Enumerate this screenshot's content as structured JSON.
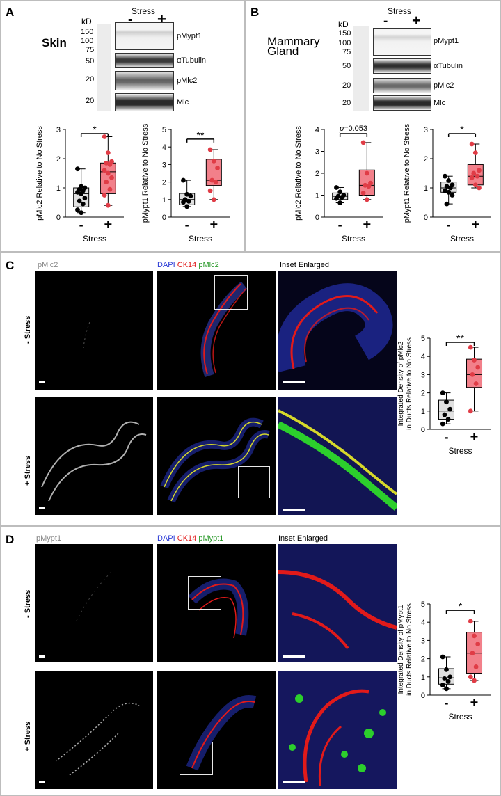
{
  "panels": {
    "A": {
      "letter": "A",
      "tissue": "Skin",
      "kd_label": "kD",
      "stress_label": "Stress",
      "minus": "-",
      "plus": "+",
      "markers": [
        "150",
        "100",
        "75",
        "50",
        "20",
        "20"
      ],
      "blot_labels": [
        "pMypt1",
        "αTubulin",
        "pMlc2",
        "Mlc"
      ]
    },
    "B": {
      "letter": "B",
      "tissue_line1": "Mammary",
      "tissue_line2": "Gland",
      "kd_label": "kD",
      "stress_label": "Stress",
      "minus": "-",
      "plus": "+",
      "markers": [
        "150",
        "100",
        "75",
        "50",
        "20",
        "20"
      ],
      "blot_labels": [
        "pMypt1",
        "αTubulin",
        "pMlc2",
        "Mlc"
      ]
    },
    "C": {
      "letter": "C",
      "col1": "pMlc2",
      "col2_dapi": "DAPI",
      "col2_ck14": "CK14",
      "col2_marker": "pMlc2",
      "col3": "Inset Enlarged",
      "row1": "- Stress",
      "row2": "+ Stress"
    },
    "D": {
      "letter": "D",
      "col1": "pMypt1",
      "col2_dapi": "DAPI",
      "col2_ck14": "CK14",
      "col2_marker": "pMypt1",
      "col3": "Inset Enlarged",
      "row1": "- Stress",
      "row2": "+ Stress"
    }
  },
  "colors": {
    "no_stress_box": "#e0e0e0",
    "stress_box": "#f2808a",
    "stress_point": "#e03c46",
    "dapi": "#2b3bd6",
    "ck14": "#e11a1a",
    "marker_green": "#2ccf2c"
  },
  "chart_data": [
    {
      "id": "A-pMlc2",
      "type": "box",
      "ylabel": "pMlc2 Relative to No Stress",
      "xlabel": "Stress",
      "categories": [
        "-",
        "+"
      ],
      "ylim": [
        0,
        3
      ],
      "yticks": [
        0,
        1,
        2,
        3
      ],
      "significance": "*",
      "series": [
        {
          "points": [
            1.65,
            1.05,
            1.0,
            0.95,
            0.9,
            0.85,
            0.8,
            0.65,
            0.55,
            0.45,
            0.25,
            0.15
          ],
          "box": [
            0.35,
            0.8,
            1.0
          ]
        },
        {
          "points": [
            2.75,
            2.2,
            1.9,
            1.85,
            1.8,
            1.6,
            1.5,
            1.35,
            1.2,
            0.95,
            0.75,
            0.4
          ],
          "box": [
            0.8,
            1.55,
            1.85
          ]
        }
      ]
    },
    {
      "id": "A-pMypt1",
      "type": "box",
      "ylabel": "pMypt1 Relative to No Stress",
      "xlabel": "Stress",
      "categories": [
        "-",
        "+"
      ],
      "ylim": [
        0,
        5
      ],
      "yticks": [
        0,
        1,
        2,
        3,
        4,
        5
      ],
      "significance": "**",
      "series": [
        {
          "points": [
            2.1,
            1.3,
            1.2,
            1.0,
            0.9,
            0.85,
            0.6
          ],
          "box": [
            0.7,
            1.0,
            1.35
          ]
        },
        {
          "points": [
            3.85,
            3.2,
            2.8,
            2.1,
            2.0,
            1.5,
            1.0
          ],
          "box": [
            1.8,
            2.1,
            3.3
          ]
        }
      ]
    },
    {
      "id": "B-pMlc2",
      "type": "box",
      "ylabel": "pMlc2 Relative to No Stress",
      "xlabel": "Stress",
      "categories": [
        "-",
        "+"
      ],
      "ylim": [
        0,
        4
      ],
      "yticks": [
        0,
        1,
        2,
        3,
        4
      ],
      "significance": "p=0.053",
      "series": [
        {
          "points": [
            1.35,
            1.15,
            1.0,
            0.95,
            0.9,
            0.85,
            0.65
          ],
          "box": [
            0.8,
            0.95,
            1.1
          ]
        },
        {
          "points": [
            3.4,
            2.0,
            1.55,
            1.45,
            1.4,
            1.1,
            0.8
          ],
          "box": [
            1.0,
            1.45,
            2.15
          ]
        }
      ]
    },
    {
      "id": "B-pMypt1",
      "type": "box",
      "ylabel": "pMypt1 Relative to No Stress",
      "xlabel": "Stress",
      "categories": [
        "-",
        "+"
      ],
      "ylim": [
        0,
        3
      ],
      "yticks": [
        0,
        1,
        2,
        3
      ],
      "significance": "*",
      "series": [
        {
          "points": [
            1.4,
            1.25,
            1.1,
            1.05,
            1.0,
            0.9,
            0.85,
            0.75,
            0.45
          ],
          "box": [
            0.85,
            1.0,
            1.2
          ]
        },
        {
          "points": [
            2.5,
            2.2,
            1.6,
            1.5,
            1.4,
            1.35,
            1.1,
            1.0
          ],
          "box": [
            1.1,
            1.4,
            1.8
          ]
        }
      ]
    },
    {
      "id": "C-density",
      "type": "box",
      "ylabel": "Integrated Density of pMlc2 in Ducts Relative to No Stress",
      "xlabel": "Stress",
      "categories": [
        "-",
        "+"
      ],
      "ylim": [
        0,
        5
      ],
      "yticks": [
        0,
        1,
        2,
        3,
        4,
        5
      ],
      "significance": "**",
      "series": [
        {
          "points": [
            2.0,
            1.5,
            1.1,
            0.8,
            0.55,
            0.3
          ],
          "box": [
            0.55,
            1.0,
            1.6
          ]
        },
        {
          "points": [
            4.5,
            3.8,
            3.4,
            3.0,
            2.5,
            1.0
          ],
          "box": [
            2.3,
            3.0,
            3.85
          ]
        }
      ]
    },
    {
      "id": "D-density",
      "type": "box",
      "ylabel": "Integrated Density of pMypt1 in Ducts Relative to No Stress",
      "xlabel": "Stress",
      "categories": [
        "-",
        "+"
      ],
      "ylim": [
        0,
        5
      ],
      "yticks": [
        0,
        1,
        2,
        3,
        4,
        5
      ],
      "significance": "*",
      "series": [
        {
          "points": [
            2.1,
            1.4,
            1.0,
            0.9,
            0.75,
            0.55,
            0.35
          ],
          "box": [
            0.6,
            0.95,
            1.45
          ]
        },
        {
          "points": [
            4.05,
            3.25,
            2.8,
            2.3,
            1.55,
            1.0,
            0.8
          ],
          "box": [
            1.2,
            2.3,
            3.45
          ]
        }
      ]
    }
  ]
}
